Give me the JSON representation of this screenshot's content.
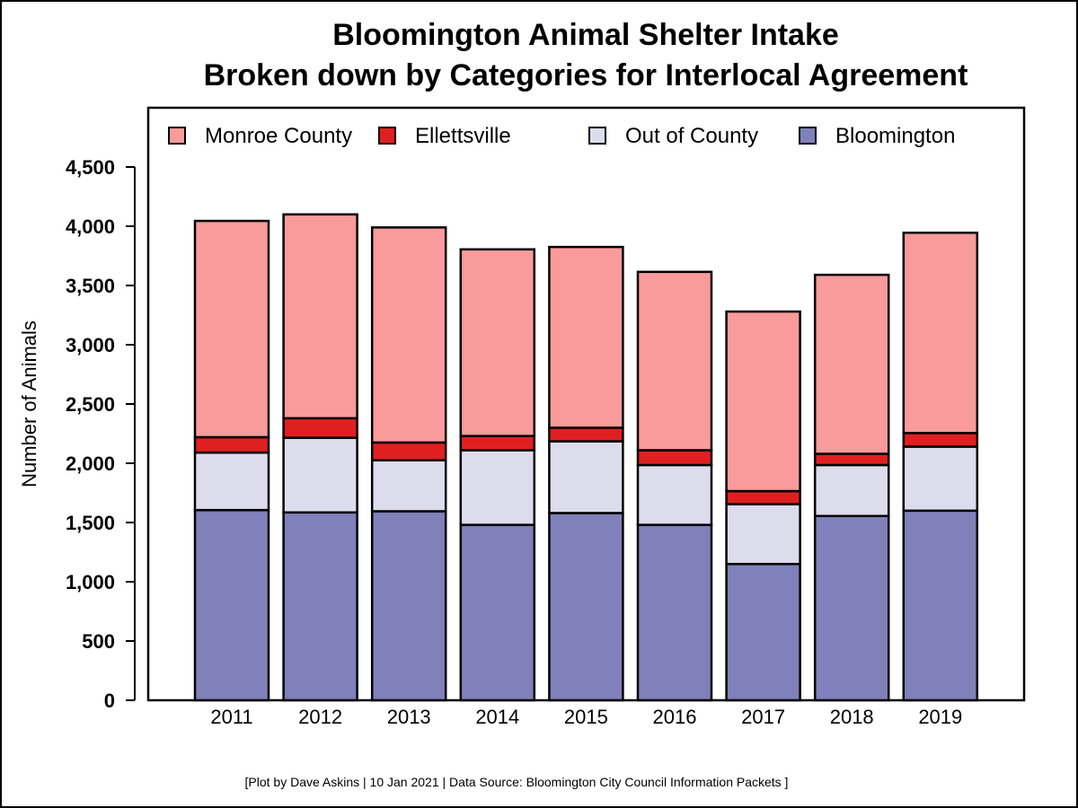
{
  "chart_data": {
    "type": "bar",
    "stacked": true,
    "title": [
      "Bloomington Animal Shelter Intake",
      "Broken down by Categories for Interlocal Agreement"
    ],
    "ylabel": "Number of Animals",
    "ylim": [
      0,
      4500
    ],
    "yticks": [
      0,
      500,
      1000,
      1500,
      2000,
      2500,
      3000,
      3500,
      4000,
      4500
    ],
    "ytick_labels": [
      "0",
      "500",
      "1,000",
      "1,500",
      "2,000",
      "2,500",
      "3,000",
      "3,500",
      "4,000",
      "4,500"
    ],
    "categories": [
      "2011",
      "2012",
      "2013",
      "2014",
      "2015",
      "2016",
      "2017",
      "2018",
      "2019"
    ],
    "series": [
      {
        "name": "Bloomington",
        "color": "#8080ba",
        "values": [
          1605,
          1585,
          1595,
          1480,
          1580,
          1480,
          1150,
          1555,
          1600
        ]
      },
      {
        "name": "Out of County",
        "color": "#dcdcec",
        "values": [
          485,
          630,
          430,
          630,
          605,
          505,
          505,
          430,
          540
        ]
      },
      {
        "name": "Ellettsville",
        "color": "#e02020",
        "values": [
          130,
          165,
          150,
          120,
          115,
          125,
          110,
          95,
          115
        ]
      },
      {
        "name": "Monroe County",
        "color": "#f99b9b",
        "values": [
          1825,
          1720,
          1815,
          1575,
          1525,
          1505,
          1515,
          1510,
          1690
        ]
      }
    ],
    "legend": {
      "placement": "top",
      "order": [
        "Monroe County",
        "Ellettsville",
        "Out of County",
        "Bloomington"
      ]
    },
    "grid": false
  },
  "caption": "[Plot by Dave Askins | 10 Jan 2021 | Data Source: Bloomington City Council Information Packets ]"
}
